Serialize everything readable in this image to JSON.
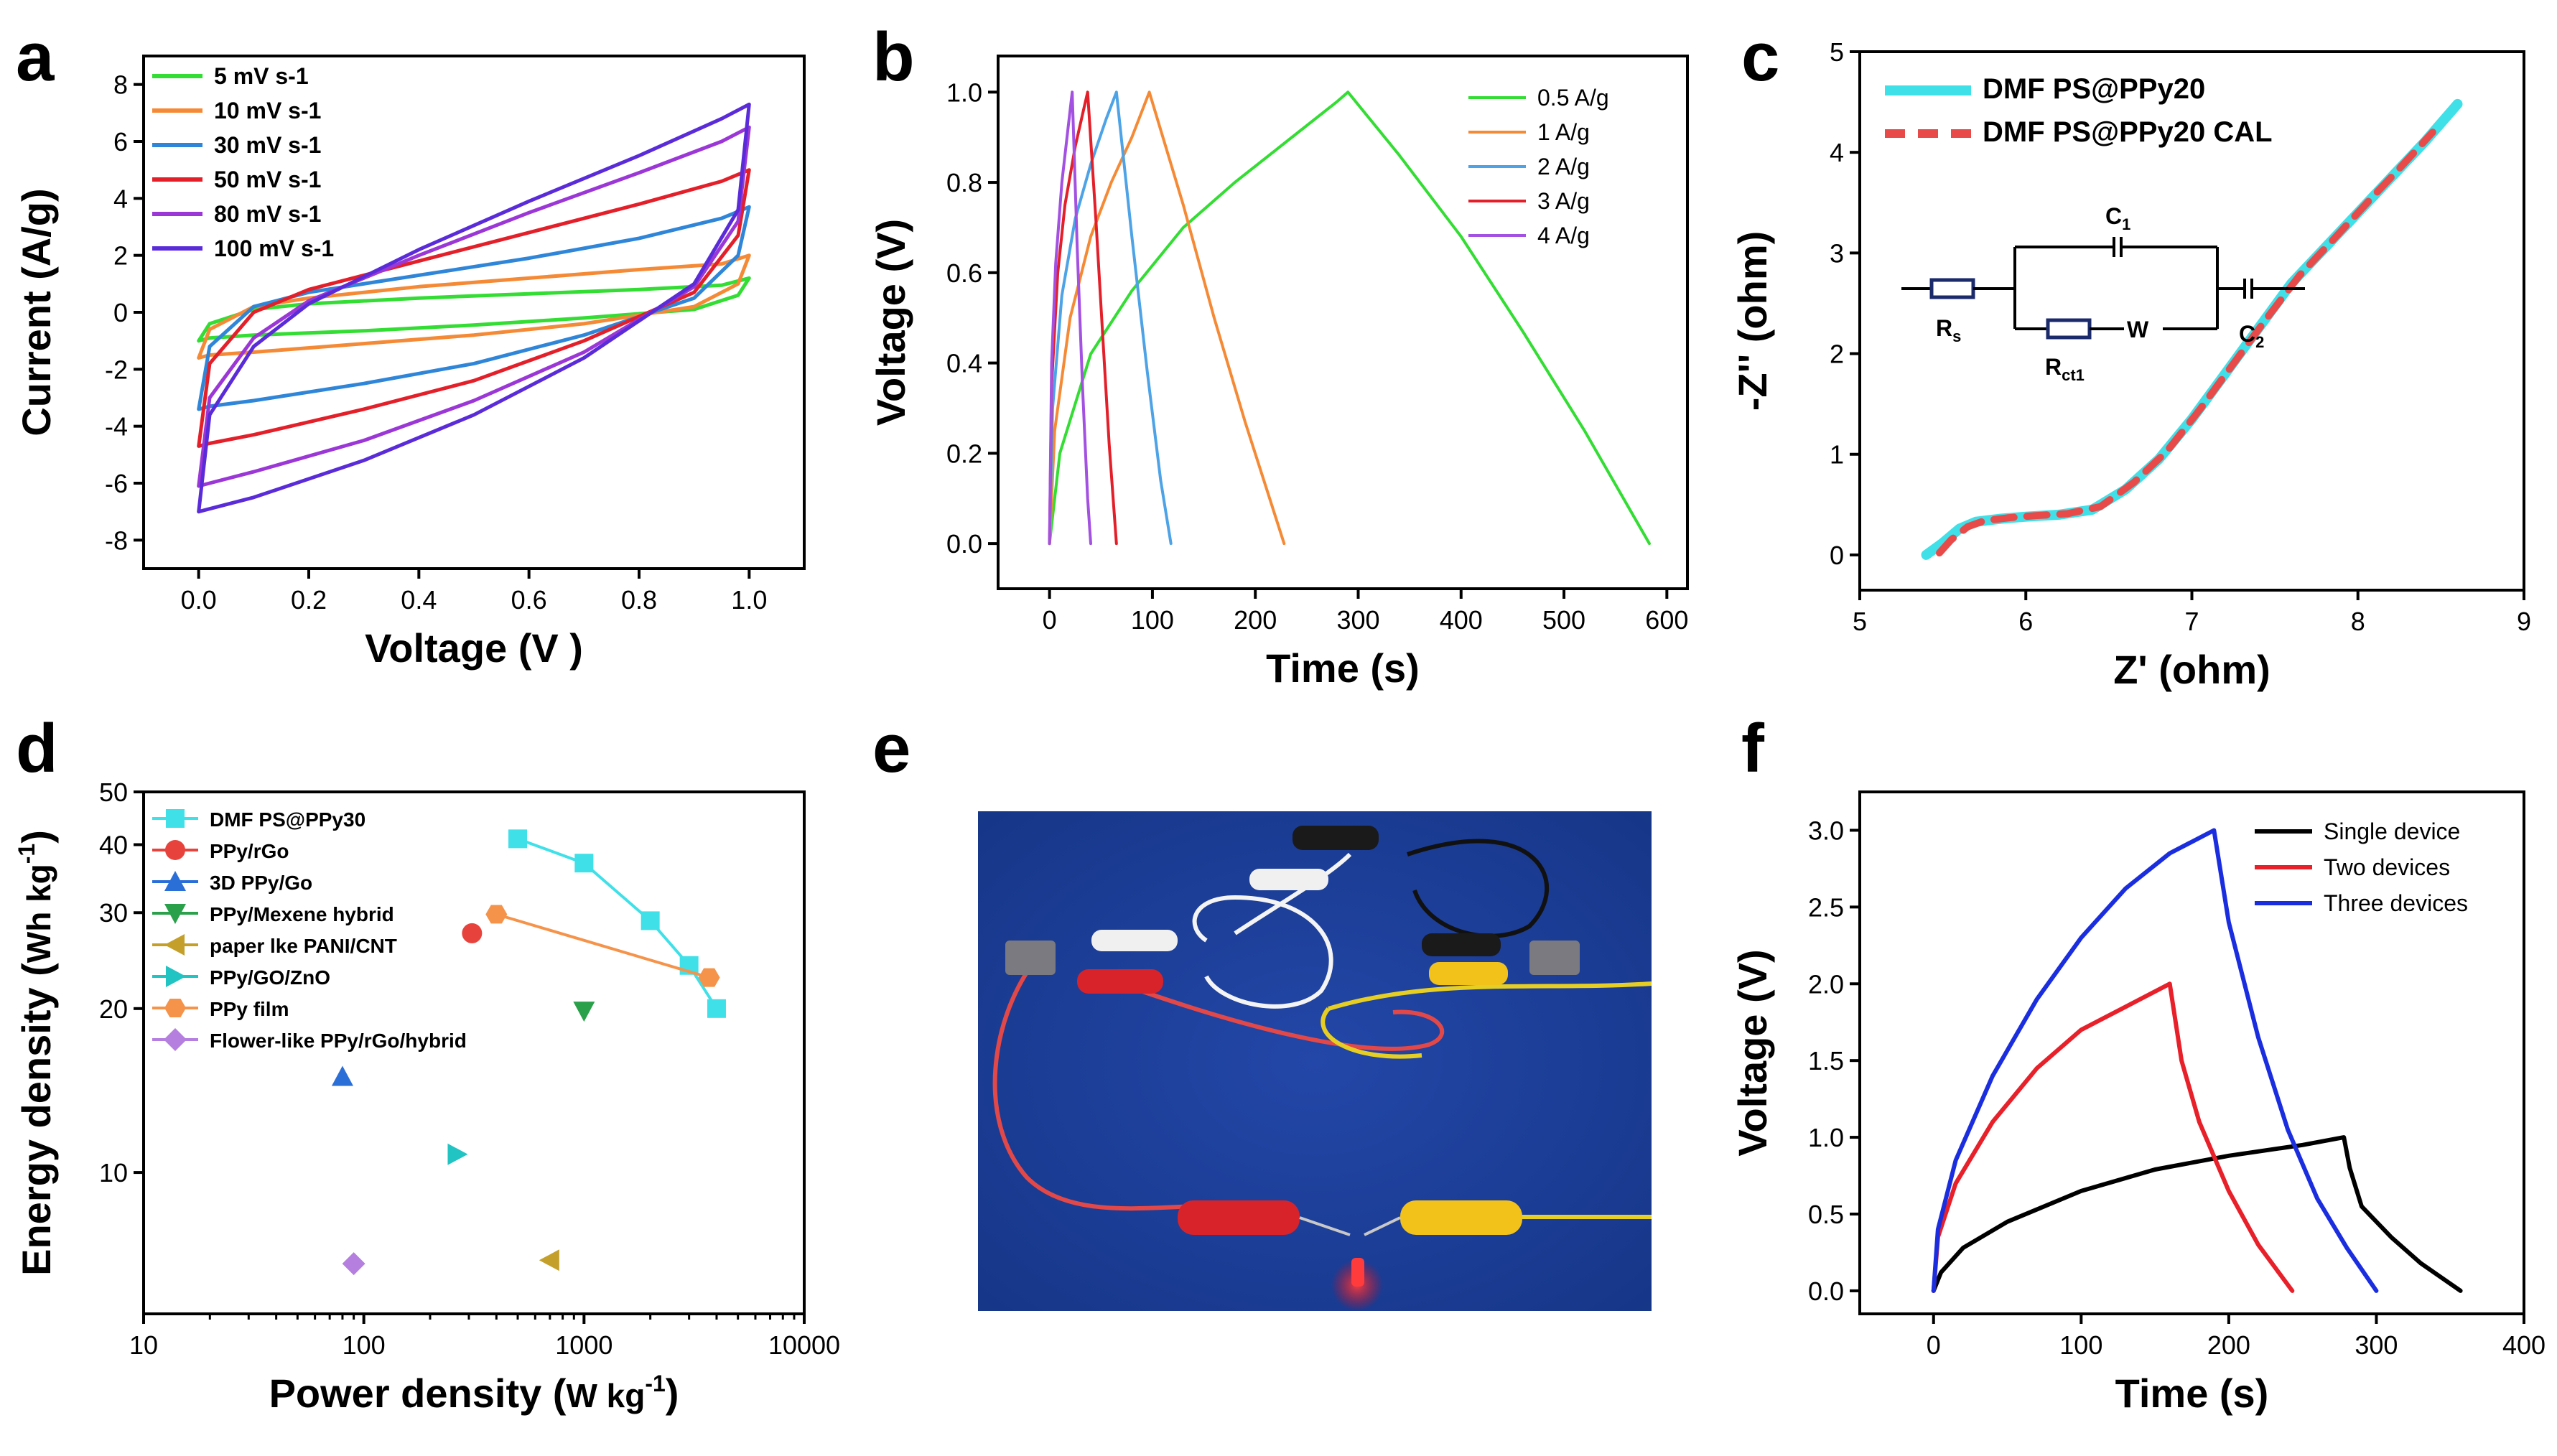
{
  "figure": {
    "accent_background": "#1c3f9e"
  },
  "panels": {
    "a": {
      "letter": "a",
      "chart_data": {
        "type": "line",
        "title": "",
        "xlabel": "Voltage (V )",
        "ylabel": "Current (A/g)",
        "xlim": [
          -0.1,
          1.1
        ],
        "ylim": [
          -9,
          9
        ],
        "xticks": [
          0.0,
          0.2,
          0.4,
          0.6,
          0.8,
          1.0
        ],
        "xtick_labels": [
          "0.0",
          "0.2",
          "0.4",
          "0.6",
          "0.8",
          "1.0"
        ],
        "yticks": [
          -8,
          -6,
          -4,
          -2,
          0,
          2,
          4,
          6,
          8
        ],
        "ytick_labels": [
          "-8",
          "-6",
          "-4",
          "-2",
          "0",
          "2",
          "4",
          "6",
          "8"
        ],
        "legend_position": "top-left",
        "series": [
          {
            "name": "5 mV s-1",
            "color": "#33dd33",
            "x": [
              0,
              0.02,
              0.1,
              0.2,
              0.4,
              0.6,
              0.8,
              0.95,
              1.0,
              0.98,
              0.9,
              0.7,
              0.5,
              0.3,
              0.1,
              0.02,
              0
            ],
            "y": [
              -1.0,
              -0.4,
              0.1,
              0.3,
              0.5,
              0.65,
              0.8,
              0.95,
              1.2,
              0.6,
              0.1,
              -0.2,
              -0.45,
              -0.65,
              -0.8,
              -0.9,
              -1.0
            ]
          },
          {
            "name": "10 mV s-1",
            "color": "#f58a36",
            "x": [
              0,
              0.02,
              0.1,
              0.2,
              0.4,
              0.6,
              0.8,
              0.95,
              1.0,
              0.98,
              0.9,
              0.7,
              0.5,
              0.3,
              0.1,
              0.02,
              0
            ],
            "y": [
              -1.6,
              -0.6,
              0.2,
              0.5,
              0.9,
              1.2,
              1.5,
              1.7,
              2.0,
              1.0,
              0.2,
              -0.4,
              -0.8,
              -1.1,
              -1.4,
              -1.5,
              -1.6
            ]
          },
          {
            "name": "30 mV s-1",
            "color": "#2f86d8",
            "x": [
              0,
              0.02,
              0.1,
              0.2,
              0.4,
              0.6,
              0.8,
              0.95,
              1.0,
              0.98,
              0.9,
              0.7,
              0.5,
              0.3,
              0.1,
              0.02,
              0
            ],
            "y": [
              -3.4,
              -1.2,
              0.2,
              0.7,
              1.3,
              1.9,
              2.6,
              3.3,
              3.7,
              2.0,
              0.5,
              -0.8,
              -1.8,
              -2.5,
              -3.1,
              -3.3,
              -3.4
            ]
          },
          {
            "name": "50 mV s-1",
            "color": "#e3202a",
            "x": [
              0,
              0.02,
              0.1,
              0.2,
              0.4,
              0.6,
              0.8,
              0.95,
              1.0,
              0.98,
              0.9,
              0.7,
              0.5,
              0.3,
              0.1,
              0.02,
              0
            ],
            "y": [
              -4.7,
              -1.8,
              0.0,
              0.8,
              1.8,
              2.8,
              3.8,
              4.6,
              5.0,
              2.7,
              0.7,
              -1.0,
              -2.4,
              -3.4,
              -4.3,
              -4.6,
              -4.7
            ]
          },
          {
            "name": "80 mV s-1",
            "color": "#9b37d6",
            "x": [
              0,
              0.02,
              0.1,
              0.2,
              0.4,
              0.6,
              0.8,
              0.95,
              1.0,
              0.98,
              0.9,
              0.7,
              0.5,
              0.3,
              0.1,
              0.02,
              0
            ],
            "y": [
              -6.1,
              -3.0,
              -0.9,
              0.4,
              2.0,
              3.5,
              4.9,
              6.0,
              6.5,
              3.2,
              0.9,
              -1.4,
              -3.1,
              -4.5,
              -5.6,
              -6.0,
              -6.1
            ]
          },
          {
            "name": "100 mV s-1",
            "color": "#5a2bd9",
            "x": [
              0,
              0.02,
              0.1,
              0.2,
              0.4,
              0.6,
              0.8,
              0.95,
              1.0,
              0.98,
              0.9,
              0.7,
              0.5,
              0.3,
              0.1,
              0.02,
              0
            ],
            "y": [
              -7.0,
              -3.6,
              -1.2,
              0.3,
              2.2,
              3.9,
              5.5,
              6.8,
              7.3,
              3.6,
              1.0,
              -1.6,
              -3.6,
              -5.2,
              -6.5,
              -6.9,
              -7.0
            ]
          }
        ]
      }
    },
    "b": {
      "letter": "b",
      "chart_data": {
        "type": "line",
        "title": "",
        "xlabel": "Time (s)",
        "ylabel": "Voltage (V)",
        "xlim": [
          -50,
          620
        ],
        "ylim": [
          -0.1,
          1.08
        ],
        "xticks": [
          0,
          100,
          200,
          300,
          400,
          500,
          600
        ],
        "xtick_labels": [
          "0",
          "100",
          "200",
          "300",
          "400",
          "500",
          "600"
        ],
        "yticks": [
          0.0,
          0.2,
          0.4,
          0.6,
          0.8,
          1.0
        ],
        "ytick_labels": [
          "0.0",
          "0.2",
          "0.4",
          "0.6",
          "0.8",
          "1.0"
        ],
        "legend_position": "top-right",
        "series": [
          {
            "name": "0.5 A/g",
            "color": "#33dd33",
            "x": [
              0,
              10,
              40,
              80,
              130,
              180,
              230,
              280,
              290,
              340,
              400,
              460,
              520,
              583
            ],
            "y": [
              0,
              0.2,
              0.42,
              0.56,
              0.7,
              0.8,
              0.89,
              0.98,
              1.0,
              0.86,
              0.68,
              0.47,
              0.25,
              0.0
            ]
          },
          {
            "name": "1 A/g",
            "color": "#f58a36",
            "x": [
              0,
              5,
              20,
              40,
              60,
              80,
              97,
              130,
              160,
              190,
              228
            ],
            "y": [
              0,
              0.25,
              0.5,
              0.68,
              0.8,
              0.9,
              1.0,
              0.75,
              0.5,
              0.27,
              0.0
            ]
          },
          {
            "name": "2 A/g",
            "color": "#4ea3e6",
            "x": [
              0,
              3,
              12,
              25,
              40,
              55,
              65,
              80,
              95,
              108,
              118
            ],
            "y": [
              0,
              0.3,
              0.55,
              0.72,
              0.84,
              0.94,
              1.0,
              0.68,
              0.38,
              0.14,
              0.0
            ]
          },
          {
            "name": "3 A/g",
            "color": "#e3202a",
            "x": [
              0,
              2,
              8,
              15,
              25,
              33,
              37,
              45,
              52,
              58,
              65
            ],
            "y": [
              0,
              0.35,
              0.6,
              0.75,
              0.88,
              0.96,
              1.0,
              0.72,
              0.45,
              0.22,
              0.0
            ]
          },
          {
            "name": "4 A/g",
            "color": "#a351e0",
            "x": [
              0,
              2,
              6,
              12,
              18,
              22,
              27,
              32,
              37,
              40
            ],
            "y": [
              0,
              0.4,
              0.62,
              0.8,
              0.92,
              1.0,
              0.65,
              0.35,
              0.1,
              0.0
            ]
          }
        ]
      }
    },
    "c": {
      "letter": "c",
      "chart_data": {
        "type": "line",
        "title": "",
        "xlabel": "Z' (ohm)",
        "ylabel": "-Z'' (ohm)",
        "xlim": [
          5,
          9
        ],
        "ylim": [
          -0.35,
          5
        ],
        "xticks": [
          5,
          6,
          7,
          8,
          9
        ],
        "xtick_labels": [
          "5",
          "6",
          "7",
          "8",
          "9"
        ],
        "yticks": [
          0,
          1,
          2,
          3,
          4,
          5
        ],
        "ytick_labels": [
          "0",
          "1",
          "2",
          "3",
          "4",
          "5"
        ],
        "legend_position": "top-left",
        "series": [
          {
            "name": "DMF PS@PPy20",
            "color": "#3fe0e8",
            "x": [
              5.4,
              5.5,
              5.6,
              5.7,
              5.85,
              6.0,
              6.2,
              6.4,
              6.6,
              6.8,
              7.0,
              7.2,
              7.4,
              7.6,
              7.8,
              8.0,
              8.2,
              8.4,
              8.6
            ],
            "y": [
              0.0,
              0.12,
              0.26,
              0.33,
              0.36,
              0.38,
              0.4,
              0.45,
              0.65,
              0.95,
              1.35,
              1.8,
              2.25,
              2.7,
              3.05,
              3.4,
              3.75,
              4.1,
              4.48
            ]
          },
          {
            "name": "DMF PS@PPy20 CAL",
            "color": "#e84a4a",
            "x": [
              5.48,
              5.55,
              5.65,
              5.75,
              5.9,
              6.05,
              6.25,
              6.45,
              6.65,
              6.85,
              7.05,
              7.25,
              7.45,
              7.65,
              7.85,
              8.05,
              8.25,
              8.45
            ],
            "y": [
              0.02,
              0.15,
              0.28,
              0.34,
              0.37,
              0.39,
              0.41,
              0.48,
              0.72,
              1.03,
              1.45,
              1.9,
              2.35,
              2.78,
              3.13,
              3.49,
              3.84,
              4.2
            ]
          }
        ],
        "inset_labels": {
          "c1": "C",
          "c1_sub": "1",
          "rs": "R",
          "rs_sub": "s",
          "rct": "R",
          "rct_sub": "ct1",
          "w": "W",
          "c2": "C",
          "c2_sub": "2"
        }
      }
    },
    "d": {
      "letter": "d",
      "chart_data": {
        "type": "scatter",
        "title": "",
        "xlabel_main": "Power density (",
        "xlabel_unit": "W kg",
        "xlabel_sup": "-1",
        "xlabel_close": ")",
        "ylabel_main": "Energy density (",
        "ylabel_unit": "Wh kg",
        "ylabel_sup": "-1",
        "ylabel_close": ")",
        "xscale": "log",
        "yscale": "log",
        "xlim": [
          10,
          10000
        ],
        "ylim": [
          5.5,
          50
        ],
        "xticks": [
          10,
          100,
          1000,
          10000
        ],
        "xtick_labels": [
          "10",
          "100",
          "1000",
          "10000"
        ],
        "yticks": [
          10,
          20,
          30,
          40,
          50
        ],
        "ytick_labels": [
          "10",
          "20",
          "30",
          "40",
          "50"
        ],
        "legend_position": "top-left",
        "series": [
          {
            "name": "DMF PS@PPy30",
            "color": "#3fe0e8",
            "marker": "square",
            "line": true,
            "x": [
              500,
              1000,
              2000,
              3000,
              4000
            ],
            "y": [
              41,
              37,
              29,
              24,
              20
            ]
          },
          {
            "name": "PPy/rGo",
            "color": "#e8423c",
            "marker": "circle",
            "line": false,
            "x": [
              310
            ],
            "y": [
              27.5
            ]
          },
          {
            "name": "3D PPy/Go",
            "color": "#2a6fd8",
            "marker": "triangle-up",
            "line": false,
            "x": [
              80
            ],
            "y": [
              15
            ]
          },
          {
            "name": "PPy/Mexene hybrid",
            "color": "#2aa04a",
            "marker": "triangle-down",
            "line": false,
            "x": [
              1000
            ],
            "y": [
              19.8
            ]
          },
          {
            "name": "paper lke PANI/CNT",
            "color": "#c4a02a",
            "marker": "triangle-left",
            "line": false,
            "x": [
              700
            ],
            "y": [
              6.9
            ]
          },
          {
            "name": "PPy/GO/ZnO",
            "color": "#22c3c3",
            "marker": "triangle-right",
            "line": false,
            "x": [
              265
            ],
            "y": [
              10.8
            ]
          },
          {
            "name": "PPy film",
            "color": "#f5934a",
            "marker": "hexagon",
            "line": true,
            "x": [
              400,
              3700
            ],
            "y": [
              29.8,
              22.8
            ]
          },
          {
            "name": "Flower-like PPy/rGo/hybrid",
            "color": "#b57fe0",
            "marker": "diamond",
            "line": false,
            "x": [
              90
            ],
            "y": [
              6.8
            ]
          }
        ]
      }
    },
    "e": {
      "letter": "e",
      "photo_name": "led-demo-photo"
    },
    "f": {
      "letter": "f",
      "chart_data": {
        "type": "line",
        "title": "",
        "xlabel": "Time (s)",
        "ylabel": "Voltage (V)",
        "xlim": [
          -50,
          400
        ],
        "ylim": [
          -0.15,
          3.25
        ],
        "xticks": [
          0,
          100,
          200,
          300,
          400
        ],
        "xtick_labels": [
          "0",
          "100",
          "200",
          "300",
          "400"
        ],
        "yticks": [
          0.0,
          0.5,
          1.0,
          1.5,
          2.0,
          2.5,
          3.0
        ],
        "ytick_labels": [
          "0.0",
          "0.5",
          "1.0",
          "1.5",
          "2.0",
          "2.5",
          "3.0"
        ],
        "legend_position": "top-right",
        "series": [
          {
            "name": "Single device",
            "color": "#000000",
            "x": [
              0,
              5,
              20,
              50,
              100,
              150,
              200,
              250,
              278,
              282,
              290,
              310,
              330,
              357
            ],
            "y": [
              0,
              0.12,
              0.28,
              0.45,
              0.65,
              0.79,
              0.88,
              0.95,
              1.0,
              0.8,
              0.55,
              0.35,
              0.18,
              0.0
            ]
          },
          {
            "name": "Two devices",
            "color": "#e8202a",
            "x": [
              0,
              3,
              15,
              40,
              70,
              100,
              130,
              160,
              168,
              180,
              200,
              220,
              243
            ],
            "y": [
              0,
              0.35,
              0.7,
              1.1,
              1.45,
              1.7,
              1.85,
              2.0,
              1.5,
              1.1,
              0.65,
              0.3,
              0.0
            ]
          },
          {
            "name": "Three devices",
            "color": "#1a2ee0",
            "x": [
              0,
              3,
              15,
              40,
              70,
              100,
              130,
              160,
              190,
              200,
              220,
              240,
              260,
              280,
              300
            ],
            "y": [
              0,
              0.4,
              0.85,
              1.4,
              1.9,
              2.3,
              2.62,
              2.85,
              3.0,
              2.4,
              1.65,
              1.05,
              0.6,
              0.28,
              0.0
            ]
          }
        ]
      }
    }
  }
}
